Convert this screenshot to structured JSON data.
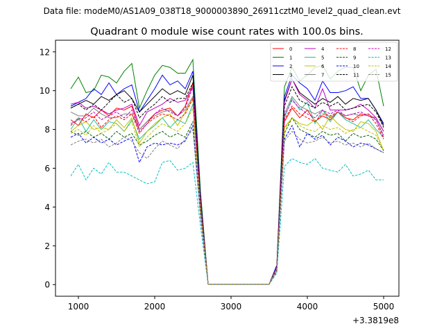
{
  "chart_data": {
    "type": "line",
    "suptitle": "Data file: modeM0/AS1A09_038T18_9000003890_26911cztM0_level2_quad_clean.evt",
    "title": "Quadrant 0 module wise count rates with 100.0s bins.",
    "xlabel": "",
    "ylabel": "",
    "x_offset_label": "+3.3819e8",
    "xlim": [
      700,
      5200
    ],
    "ylim": [
      -0.6,
      12.6
    ],
    "xticks": [
      1000,
      2000,
      3000,
      4000,
      5000
    ],
    "yticks": [
      0,
      2,
      4,
      6,
      8,
      10,
      12
    ],
    "grid": false,
    "legend_placement": "top-right",
    "legend_columns": 4,
    "x": [
      900,
      1000,
      1100,
      1200,
      1300,
      1400,
      1500,
      1600,
      1700,
      1800,
      1900,
      2000,
      2100,
      2200,
      2300,
      2400,
      2500,
      2600,
      2700,
      2800,
      2900,
      3000,
      3100,
      3200,
      3300,
      3400,
      3500,
      3600,
      3700,
      3800,
      3900,
      4000,
      4100,
      4200,
      4300,
      4400,
      4500,
      4600,
      4700,
      4800,
      4900,
      5000
    ],
    "series": [
      {
        "name": "0",
        "color": "#ff0000",
        "dash": "solid",
        "values": [
          8.5,
          8.2,
          8.8,
          8.6,
          9.0,
          8.7,
          9.1,
          9.0,
          9.2,
          8.0,
          8.4,
          8.8,
          9.0,
          9.1,
          8.7,
          9.2,
          10.4,
          4.3,
          0.02,
          0.02,
          0.02,
          0.02,
          0.02,
          0.02,
          0.02,
          0.02,
          0.02,
          0.9,
          8.4,
          9.1,
          8.6,
          9.0,
          8.4,
          8.7,
          8.5,
          8.9,
          8.6,
          8.5,
          8.8,
          8.7,
          8.6,
          7.9
        ]
      },
      {
        "name": "1",
        "color": "#008000",
        "dash": "solid",
        "values": [
          10.1,
          10.7,
          9.9,
          10.0,
          10.8,
          10.7,
          10.4,
          11.0,
          11.4,
          9.1,
          10.0,
          10.8,
          11.3,
          11.2,
          10.9,
          10.9,
          11.6,
          4.8,
          0.02,
          0.02,
          0.02,
          0.02,
          0.02,
          0.02,
          0.02,
          0.02,
          0.02,
          1.0,
          10.2,
          11.2,
          10.5,
          10.8,
          11.2,
          11.3,
          10.6,
          11.0,
          11.2,
          11.2,
          10.0,
          10.8,
          11.1,
          9.2
        ]
      },
      {
        "name": "2",
        "color": "#0000ff",
        "dash": "solid",
        "values": [
          9.2,
          9.4,
          9.6,
          10.1,
          9.8,
          10.4,
          9.8,
          10.1,
          10.3,
          8.9,
          9.5,
          10.1,
          10.8,
          10.3,
          10.5,
          10.1,
          11.0,
          4.5,
          0.02,
          0.02,
          0.02,
          0.02,
          0.02,
          0.02,
          0.02,
          0.02,
          0.02,
          1.0,
          9.7,
          10.8,
          10.4,
          10.1,
          9.5,
          10.5,
          9.9,
          9.9,
          10.0,
          10.2,
          9.6,
          9.6,
          9.0,
          8.3
        ]
      },
      {
        "name": "3",
        "color": "#000000",
        "dash": "solid",
        "values": [
          9.1,
          9.3,
          9.5,
          9.3,
          9.7,
          9.5,
          9.8,
          10.0,
          9.6,
          8.9,
          9.3,
          9.7,
          10.1,
          9.8,
          10.0,
          9.8,
          10.8,
          4.4,
          0.02,
          0.02,
          0.02,
          0.02,
          0.02,
          0.02,
          0.02,
          0.02,
          0.02,
          0.9,
          9.5,
          10.6,
          9.9,
          9.6,
          9.3,
          9.6,
          9.4,
          9.7,
          9.3,
          9.6,
          9.5,
          9.6,
          9.0,
          8.2
        ]
      },
      {
        "name": "4",
        "color": "#c000c0",
        "dash": "solid",
        "values": [
          9.3,
          9.4,
          9.1,
          9.2,
          9.0,
          8.8,
          9.0,
          9.1,
          9.3,
          8.2,
          8.9,
          9.1,
          9.3,
          9.6,
          9.4,
          9.5,
          10.2,
          4.3,
          0.02,
          0.02,
          0.02,
          0.02,
          0.02,
          0.02,
          0.02,
          0.02,
          0.02,
          0.9,
          9.4,
          10.6,
          9.8,
          9.5,
          9.1,
          10.1,
          9.0,
          9.0,
          9.0,
          9.1,
          9.3,
          9.0,
          8.6,
          7.9
        ]
      },
      {
        "name": "5",
        "color": "#20c0a0",
        "dash": "solid",
        "values": [
          8.0,
          8.6,
          7.9,
          8.5,
          8.0,
          8.4,
          8.3,
          7.9,
          8.5,
          7.5,
          7.9,
          8.2,
          8.6,
          8.1,
          8.5,
          8.3,
          9.3,
          4.0,
          0.02,
          0.02,
          0.02,
          0.02,
          0.02,
          0.02,
          0.02,
          0.02,
          0.02,
          0.8,
          8.6,
          9.6,
          9.0,
          9.4,
          8.3,
          9.0,
          8.4,
          8.9,
          8.5,
          8.3,
          8.1,
          8.5,
          8.0,
          7.6
        ]
      },
      {
        "name": "6",
        "color": "#c0c000",
        "dash": "solid",
        "values": [
          7.9,
          8.2,
          8.4,
          8.0,
          8.1,
          8.0,
          8.5,
          8.1,
          8.6,
          7.3,
          7.9,
          8.3,
          8.6,
          8.8,
          8.2,
          8.9,
          9.6,
          4.1,
          0.02,
          0.02,
          0.02,
          0.02,
          0.02,
          0.02,
          0.02,
          0.02,
          0.02,
          0.8,
          8.1,
          8.6,
          8.3,
          8.2,
          8.5,
          8.0,
          8.7,
          8.3,
          8.0,
          7.9,
          8.4,
          8.3,
          7.9,
          6.9
        ]
      },
      {
        "name": "7",
        "color": "#808080",
        "dash": "solid",
        "values": [
          8.9,
          8.7,
          8.7,
          9.1,
          8.8,
          8.6,
          8.6,
          8.8,
          8.8,
          8.0,
          8.4,
          8.7,
          8.9,
          9.0,
          8.7,
          9.0,
          9.7,
          4.2,
          0.02,
          0.02,
          0.02,
          0.02,
          0.02,
          0.02,
          0.02,
          0.02,
          0.02,
          0.9,
          8.8,
          9.7,
          9.2,
          9.0,
          8.8,
          9.0,
          8.6,
          8.9,
          8.7,
          8.8,
          8.7,
          8.8,
          8.5,
          7.7
        ]
      },
      {
        "name": "8",
        "color": "#ff0000",
        "dash": "dashed",
        "values": [
          8.2,
          8.6,
          8.4,
          8.7,
          8.1,
          8.5,
          8.7,
          8.5,
          8.8,
          7.8,
          8.3,
          8.6,
          8.8,
          8.7,
          8.5,
          8.8,
          9.6,
          4.1,
          0.02,
          0.02,
          0.02,
          0.02,
          0.02,
          0.02,
          0.02,
          0.02,
          0.02,
          0.8,
          8.5,
          9.2,
          8.8,
          8.6,
          8.4,
          8.8,
          8.7,
          8.9,
          8.6,
          8.4,
          8.7,
          8.8,
          8.3,
          7.5
        ]
      },
      {
        "name": "9",
        "color": "#006400",
        "dash": "dashed",
        "values": [
          7.9,
          7.7,
          7.9,
          7.6,
          7.8,
          7.5,
          7.9,
          7.6,
          7.8,
          7.2,
          7.4,
          7.7,
          7.9,
          7.6,
          7.8,
          7.6,
          8.4,
          3.7,
          0.02,
          0.02,
          0.02,
          0.02,
          0.02,
          0.02,
          0.02,
          0.02,
          0.02,
          0.7,
          7.8,
          8.6,
          8.0,
          7.8,
          7.6,
          7.9,
          7.7,
          7.8,
          7.4,
          7.8,
          7.6,
          7.7,
          7.5,
          6.9
        ]
      },
      {
        "name": "10",
        "color": "#0000ff",
        "dash": "dashed",
        "values": [
          7.6,
          7.8,
          7.3,
          7.6,
          7.3,
          7.5,
          7.2,
          7.4,
          7.6,
          6.3,
          7.1,
          7.3,
          7.2,
          7.3,
          7.2,
          7.4,
          8.2,
          3.6,
          0.02,
          0.02,
          0.02,
          0.02,
          0.02,
          0.02,
          0.02,
          0.02,
          0.02,
          0.7,
          7.5,
          8.2,
          7.1,
          7.8,
          7.5,
          7.7,
          7.2,
          7.6,
          7.4,
          7.1,
          7.3,
          7.2,
          7.0,
          6.8
        ]
      },
      {
        "name": "11",
        "color": "#000000",
        "dash": "dashed",
        "values": [
          9.1,
          9.3,
          9.0,
          9.3,
          9.0,
          9.4,
          9.8,
          9.4,
          9.6,
          8.6,
          9.0,
          9.3,
          9.7,
          9.4,
          9.6,
          9.6,
          10.4,
          4.3,
          0.02,
          0.02,
          0.02,
          0.02,
          0.02,
          0.02,
          0.02,
          0.02,
          0.02,
          0.9,
          9.2,
          10.2,
          9.5,
          9.3,
          9.1,
          9.4,
          9.2,
          9.4,
          9.0,
          9.1,
          9.2,
          9.3,
          8.9,
          8.1
        ]
      },
      {
        "name": "12",
        "color": "#c000c0",
        "dash": "dashed",
        "values": [
          8.3,
          8.5,
          8.6,
          8.9,
          8.5,
          8.7,
          8.9,
          8.6,
          9.0,
          7.9,
          8.3,
          8.8,
          9.1,
          8.9,
          8.7,
          9.1,
          10.2,
          4.2,
          0.02,
          0.02,
          0.02,
          0.02,
          0.02,
          0.02,
          0.02,
          0.02,
          0.02,
          0.9,
          8.7,
          9.5,
          9.1,
          8.8,
          8.6,
          9.0,
          8.8,
          9.0,
          8.7,
          8.8,
          8.9,
          8.7,
          8.5,
          7.6
        ]
      },
      {
        "name": "13",
        "color": "#00c0c0",
        "dash": "dashed",
        "values": [
          5.6,
          6.2,
          5.4,
          6.0,
          5.7,
          6.3,
          5.8,
          5.8,
          5.6,
          5.4,
          5.2,
          5.3,
          6.3,
          6.4,
          5.9,
          6.0,
          6.3,
          3.0,
          0.02,
          0.02,
          0.02,
          0.02,
          0.02,
          0.02,
          0.02,
          0.02,
          0.02,
          0.6,
          6.1,
          6.5,
          6.3,
          6.2,
          6.5,
          6.0,
          5.9,
          5.8,
          6.2,
          5.6,
          5.7,
          5.9,
          5.4,
          5.4
        ]
      },
      {
        "name": "14",
        "color": "#c0c000",
        "dash": "dashed",
        "values": [
          7.8,
          8.0,
          7.7,
          8.2,
          7.8,
          8.0,
          8.3,
          7.9,
          8.4,
          7.1,
          7.6,
          8.0,
          8.3,
          8.1,
          7.9,
          8.3,
          9.1,
          3.9,
          0.02,
          0.02,
          0.02,
          0.02,
          0.02,
          0.02,
          0.02,
          0.02,
          0.02,
          0.8,
          8.0,
          8.6,
          8.2,
          8.0,
          7.9,
          8.2,
          8.0,
          8.1,
          7.8,
          8.0,
          8.1,
          7.9,
          7.7,
          6.9
        ]
      },
      {
        "name": "15",
        "color": "#808080",
        "dash": "dashed",
        "values": [
          7.2,
          7.4,
          7.5,
          7.3,
          7.5,
          7.1,
          7.3,
          7.6,
          7.4,
          6.8,
          6.5,
          7.0,
          7.4,
          7.2,
          7.0,
          7.5,
          8.0,
          3.5,
          0.02,
          0.02,
          0.02,
          0.02,
          0.02,
          0.02,
          0.02,
          0.02,
          0.02,
          0.7,
          7.4,
          7.9,
          7.5,
          7.3,
          7.4,
          7.6,
          7.3,
          7.4,
          7.2,
          7.3,
          7.1,
          7.3,
          7.0,
          6.8
        ]
      }
    ]
  }
}
